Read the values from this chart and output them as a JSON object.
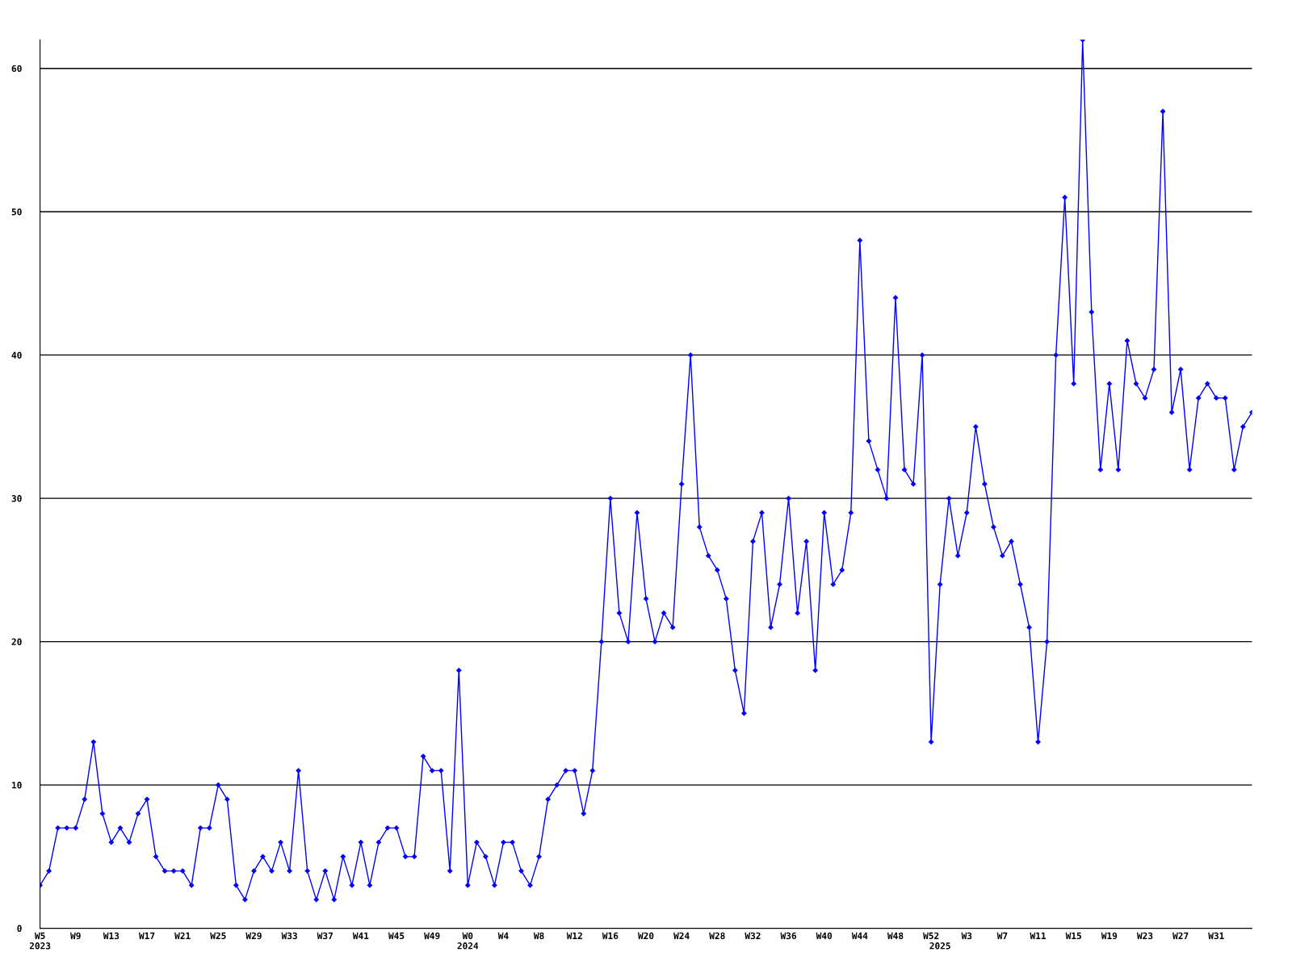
{
  "chart_data": {
    "type": "line",
    "categories": [
      "W5\n2023",
      null,
      null,
      null,
      "W9",
      null,
      null,
      null,
      "W13",
      null,
      null,
      null,
      "W17",
      null,
      null,
      null,
      "W21",
      null,
      null,
      null,
      "W25",
      null,
      null,
      null,
      "W29",
      null,
      null,
      null,
      "W33",
      null,
      null,
      null,
      "W37",
      null,
      null,
      null,
      "W41",
      null,
      null,
      null,
      "W45",
      null,
      null,
      null,
      "W49",
      null,
      null,
      null,
      "W0\n2024",
      null,
      null,
      null,
      "W4",
      null,
      null,
      null,
      "W8",
      null,
      null,
      null,
      "W12",
      null,
      null,
      null,
      "W16",
      null,
      null,
      null,
      "W20",
      null,
      null,
      null,
      "W24",
      null,
      null,
      null,
      "W28",
      null,
      null,
      null,
      "W32",
      null,
      null,
      null,
      "W36",
      null,
      null,
      null,
      "W40",
      null,
      null,
      null,
      "W44",
      null,
      null,
      null,
      "W48",
      null,
      null,
      null,
      "W52",
      "\n2025",
      null,
      null,
      "W3",
      null,
      null,
      null,
      "W7",
      null,
      null,
      null,
      "W11",
      null,
      null,
      null,
      "W15",
      null,
      null,
      null,
      "W19",
      null,
      null,
      null,
      "W23",
      null,
      null,
      null,
      "W27",
      null,
      null,
      null,
      "W31",
      null,
      null,
      null,
      null
    ],
    "series": [
      {
        "color": "#0000ff",
        "values": [
          3,
          4,
          7,
          7,
          7,
          9,
          13,
          8,
          6,
          7,
          6,
          8,
          9,
          5,
          4,
          4,
          4,
          3,
          7,
          7,
          10,
          9,
          3,
          2,
          4,
          5,
          4,
          6,
          4,
          11,
          4,
          2,
          4,
          2,
          5,
          3,
          6,
          3,
          6,
          7,
          7,
          5,
          5,
          12,
          11,
          11,
          4,
          18,
          3,
          6,
          5,
          3,
          6,
          6,
          4,
          3,
          5,
          9,
          10,
          11,
          11,
          8,
          11,
          20,
          30,
          22,
          20,
          29,
          23,
          20,
          22,
          21,
          31,
          40,
          28,
          26,
          25,
          23,
          18,
          15,
          27,
          29,
          21,
          24,
          30,
          22,
          27,
          18,
          29,
          24,
          25,
          29,
          48,
          34,
          32,
          30,
          44,
          32,
          31,
          40,
          13,
          24,
          30,
          26,
          29,
          35,
          31,
          28,
          26,
          27,
          24,
          21,
          13,
          20,
          40,
          51,
          38,
          62,
          43,
          32,
          38,
          32,
          41,
          38,
          37,
          39,
          57,
          36,
          39,
          32,
          37,
          38,
          37,
          37,
          32,
          35,
          36
        ]
      }
    ],
    "ylim": [
      0,
      62
    ],
    "yticks": [
      0,
      10,
      20,
      30,
      40,
      50,
      60
    ],
    "grid": "y",
    "marker": "diamond",
    "line_style": "solid"
  }
}
